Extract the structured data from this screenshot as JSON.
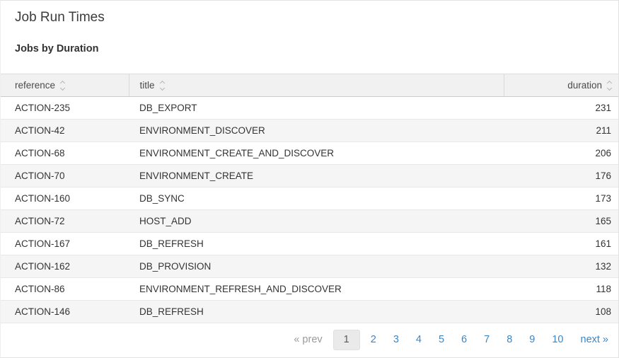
{
  "page": {
    "title": "Job Run Times",
    "subtitle": "Jobs by Duration"
  },
  "table": {
    "columns": [
      {
        "key": "reference",
        "label": "reference",
        "align": "left"
      },
      {
        "key": "title",
        "label": "title",
        "align": "left"
      },
      {
        "key": "duration",
        "label": "duration",
        "align": "right"
      }
    ],
    "rows": [
      {
        "reference": "ACTION-235",
        "title": "DB_EXPORT",
        "duration": "231"
      },
      {
        "reference": "ACTION-42",
        "title": "ENVIRONMENT_DISCOVER",
        "duration": "211"
      },
      {
        "reference": "ACTION-68",
        "title": "ENVIRONMENT_CREATE_AND_DISCOVER",
        "duration": "206"
      },
      {
        "reference": "ACTION-70",
        "title": "ENVIRONMENT_CREATE",
        "duration": "176"
      },
      {
        "reference": "ACTION-160",
        "title": "DB_SYNC",
        "duration": "173"
      },
      {
        "reference": "ACTION-72",
        "title": "HOST_ADD",
        "duration": "165"
      },
      {
        "reference": "ACTION-167",
        "title": "DB_REFRESH",
        "duration": "161"
      },
      {
        "reference": "ACTION-162",
        "title": "DB_PROVISION",
        "duration": "132"
      },
      {
        "reference": "ACTION-86",
        "title": "ENVIRONMENT_REFRESH_AND_DISCOVER",
        "duration": "118"
      },
      {
        "reference": "ACTION-146",
        "title": "DB_REFRESH",
        "duration": "108"
      }
    ]
  },
  "pagination": {
    "prev_label": "« prev",
    "next_label": "next »",
    "pages": [
      "1",
      "2",
      "3",
      "4",
      "5",
      "6",
      "7",
      "8",
      "9",
      "10"
    ],
    "current_page": "1"
  },
  "icons": {
    "sort": "up-down-chevrons"
  },
  "colors": {
    "link_blue": "#3a87c8",
    "header_bg": "#f1f1f1",
    "stripe_bg": "#f5f5f5",
    "muted_gray": "#9a9a9a",
    "active_page_bg": "#eaeaea"
  }
}
